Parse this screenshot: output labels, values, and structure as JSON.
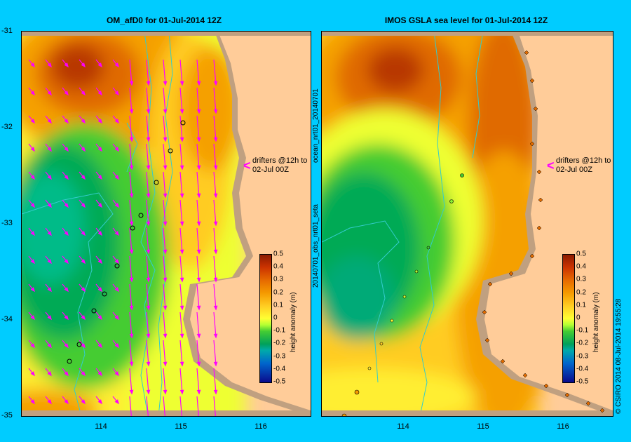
{
  "left_panel": {
    "title": "OM_afD0 for 01-Jul-2014 12Z",
    "drifter_note_line1": "drifters @12h to",
    "drifter_note_line2": "02-Jul 00Z",
    "colorbar_title": "height anomaly (m)"
  },
  "right_panel": {
    "title": "IMOS GSLA sea level  for 01-Jul-2014 12Z",
    "drifter_note_line1": "drifters @12h to",
    "drifter_note_line2": "02-Jul 00Z",
    "colorbar_title": "height anomaly (m)",
    "side_label_top": "ocean_nrt01_20140701",
    "side_label_bottom": "20140701_obs_nrt01_seta"
  },
  "lat_ticks": [
    "-31",
    "-32",
    "-33",
    "-34",
    "-35"
  ],
  "lon_ticks": [
    "114",
    "115",
    "116"
  ],
  "colorbar_ticks": [
    "0.5",
    "0.4",
    "0.3",
    "0.2",
    "0.1",
    "0",
    "-0.1",
    "-0.2",
    "-0.3",
    "-0.4",
    "-0.5"
  ],
  "credit": "© CSIRO 2014   08-Jul-2014 19:55:28",
  "colors": {
    "background": "#00ccff",
    "land": "#ffcc99",
    "coast_shelf": "#c0a080",
    "drifter_arrow": "#ff00ff",
    "bathymetry": "#33cccc"
  }
}
